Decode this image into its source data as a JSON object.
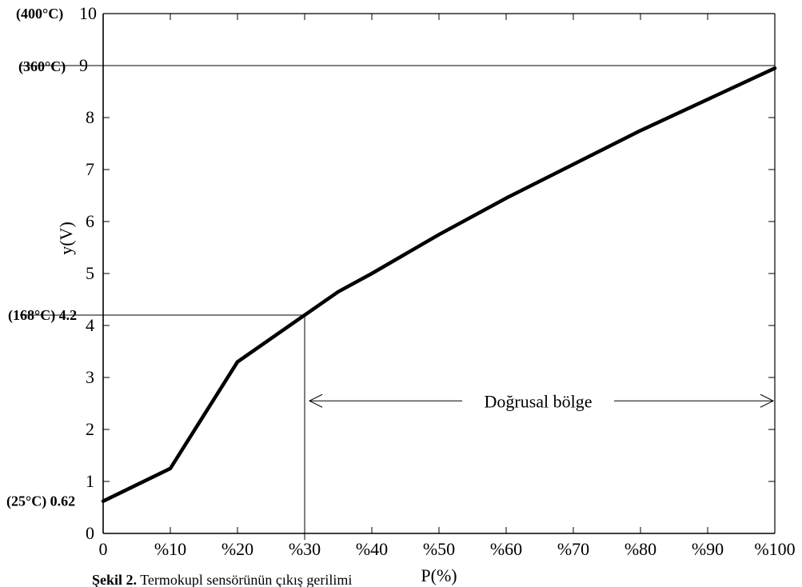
{
  "chart_data": {
    "type": "line",
    "xlabel": "P(%)",
    "ylabel": "y(V)",
    "xlim": [
      0,
      100
    ],
    "ylim": [
      0,
      10
    ],
    "x_ticks": [
      {
        "value": 0,
        "label": "0"
      },
      {
        "value": 10,
        "label": "%10"
      },
      {
        "value": 20,
        "label": "%20"
      },
      {
        "value": 30,
        "label": "%30"
      },
      {
        "value": 40,
        "label": "%40"
      },
      {
        "value": 50,
        "label": "%50"
      },
      {
        "value": 60,
        "label": "%60"
      },
      {
        "value": 70,
        "label": "%70"
      },
      {
        "value": 80,
        "label": "%80"
      },
      {
        "value": 90,
        "label": "%90"
      },
      {
        "value": 100,
        "label": "%100"
      }
    ],
    "y_ticks": [
      {
        "value": 0,
        "label": "0"
      },
      {
        "value": 1,
        "label": "1"
      },
      {
        "value": 2,
        "label": "2"
      },
      {
        "value": 3,
        "label": "3"
      },
      {
        "value": 4,
        "label": "4"
      },
      {
        "value": 5,
        "label": "5"
      },
      {
        "value": 6,
        "label": "6"
      },
      {
        "value": 7,
        "label": "7"
      },
      {
        "value": 8,
        "label": "8"
      },
      {
        "value": 9,
        "label": "9"
      },
      {
        "value": 10,
        "label": "10"
      }
    ],
    "series": [
      {
        "x": [
          0,
          10,
          20,
          30,
          35,
          40,
          50,
          60,
          70,
          80,
          90,
          100
        ],
        "y": [
          0.62,
          1.25,
          3.3,
          4.2,
          4.65,
          5.0,
          5.75,
          6.45,
          7.1,
          7.75,
          8.35,
          8.95
        ],
        "color": "#000000"
      }
    ],
    "annotations": {
      "y_markers": [
        {
          "y": 10,
          "label": "(400°C)",
          "tick_text": "10"
        },
        {
          "y": 9,
          "label": "(360°C)",
          "tick_text": "9",
          "hline_to_x": 100
        },
        {
          "y": 4.2,
          "label": "(168°C) 4.2",
          "hline_to_x": 30,
          "vline_at_x": 30
        },
        {
          "y": 0.62,
          "label": "(25°C) 0.62"
        }
      ],
      "region": {
        "x_start": 30,
        "x_end": 100,
        "y": 2.55,
        "label": "Doğrusal bölge"
      }
    },
    "grid": false
  },
  "caption": {
    "bold_part": "Şekil 2.",
    "text": " Termokupl sensörünün çıkış gerilimi"
  }
}
